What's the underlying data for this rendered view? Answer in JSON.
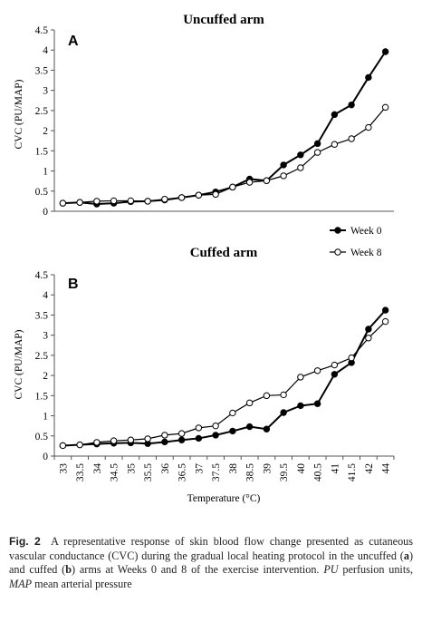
{
  "chart_data": [
    {
      "type": "line",
      "panel_letter": "A",
      "title": "Uncuffed arm",
      "ylabel": "CVC (PU/MAP)",
      "ylim": [
        0,
        4.5
      ],
      "yticks": [
        "0",
        "0.5",
        "1",
        "1.5",
        "2",
        "2.5",
        "3",
        "3.5",
        "4",
        "4.5"
      ],
      "x": [
        33,
        33.5,
        34,
        34.5,
        35,
        35.5,
        36,
        36.5,
        37,
        37.5,
        38,
        38.5,
        39,
        39.5,
        40,
        40.5,
        41,
        41.5,
        42,
        44
      ],
      "series": [
        {
          "name": "Week 0",
          "values": [
            0.2,
            0.22,
            0.18,
            0.2,
            0.24,
            0.25,
            0.28,
            0.34,
            0.4,
            0.48,
            0.6,
            0.8,
            0.76,
            1.15,
            1.4,
            1.68,
            2.4,
            2.64,
            3.32,
            3.96
          ]
        },
        {
          "name": "Week 8",
          "values": [
            0.2,
            0.22,
            0.25,
            0.26,
            0.26,
            0.25,
            0.3,
            0.34,
            0.4,
            0.42,
            0.6,
            0.72,
            0.76,
            0.88,
            1.08,
            1.46,
            1.66,
            1.8,
            2.08,
            2.58
          ]
        }
      ]
    },
    {
      "type": "line",
      "panel_letter": "B",
      "title": "Cuffed arm",
      "ylabel": "CVC (PU/MAP)",
      "xlabel": "Temperature (°C)",
      "ylim": [
        0,
        4.5
      ],
      "yticks": [
        "0",
        "0.5",
        "1",
        "1.5",
        "2",
        "2.5",
        "3",
        "3.5",
        "4",
        "4.5"
      ],
      "x": [
        33,
        33.5,
        34,
        34.5,
        35,
        35.5,
        36,
        36.5,
        37,
        37.5,
        38,
        38.5,
        39,
        39.5,
        40,
        40.5,
        41,
        41.5,
        42,
        44
      ],
      "xtick_labels": [
        "33",
        "33.5",
        "34",
        "34.5",
        "35",
        "35.5",
        "36",
        "36.5",
        "37",
        "37.5",
        "38",
        "38.5",
        "39",
        "39.5",
        "40",
        "40.5",
        "41",
        "41.5",
        "42",
        "44"
      ],
      "series": [
        {
          "name": "Week 0",
          "values": [
            0.26,
            0.28,
            0.3,
            0.32,
            0.33,
            0.31,
            0.35,
            0.4,
            0.44,
            0.52,
            0.62,
            0.73,
            0.67,
            1.08,
            1.25,
            1.3,
            2.03,
            2.32,
            3.15,
            3.62
          ]
        },
        {
          "name": "Week 8",
          "values": [
            0.26,
            0.28,
            0.34,
            0.38,
            0.4,
            0.43,
            0.52,
            0.56,
            0.7,
            0.75,
            1.07,
            1.32,
            1.5,
            1.52,
            1.96,
            2.12,
            2.26,
            2.44,
            2.93,
            3.34
          ]
        }
      ]
    }
  ],
  "legend": {
    "position": "right, between panels",
    "items": [
      {
        "label": "Week 0",
        "marker": "filled-circle",
        "color": "#000000"
      },
      {
        "label": "Week 8",
        "marker": "open-circle",
        "color": "#000000"
      }
    ]
  },
  "caption": {
    "label": "Fig. 2",
    "text_1": "A representative response of skin blood flow change presented as cutaneous vascular conductance (CVC) during the gradual local heating protocol in the uncuffed (",
    "a": "a",
    "text_2": ") and cuffed (",
    "b": "b",
    "text_3": ") arms at Weeks 0 and 8 of the exercise intervention. ",
    "pu": "PU",
    "text_4": " perfusion units, ",
    "map": "MAP",
    "text_5": " mean arterial pressure"
  }
}
